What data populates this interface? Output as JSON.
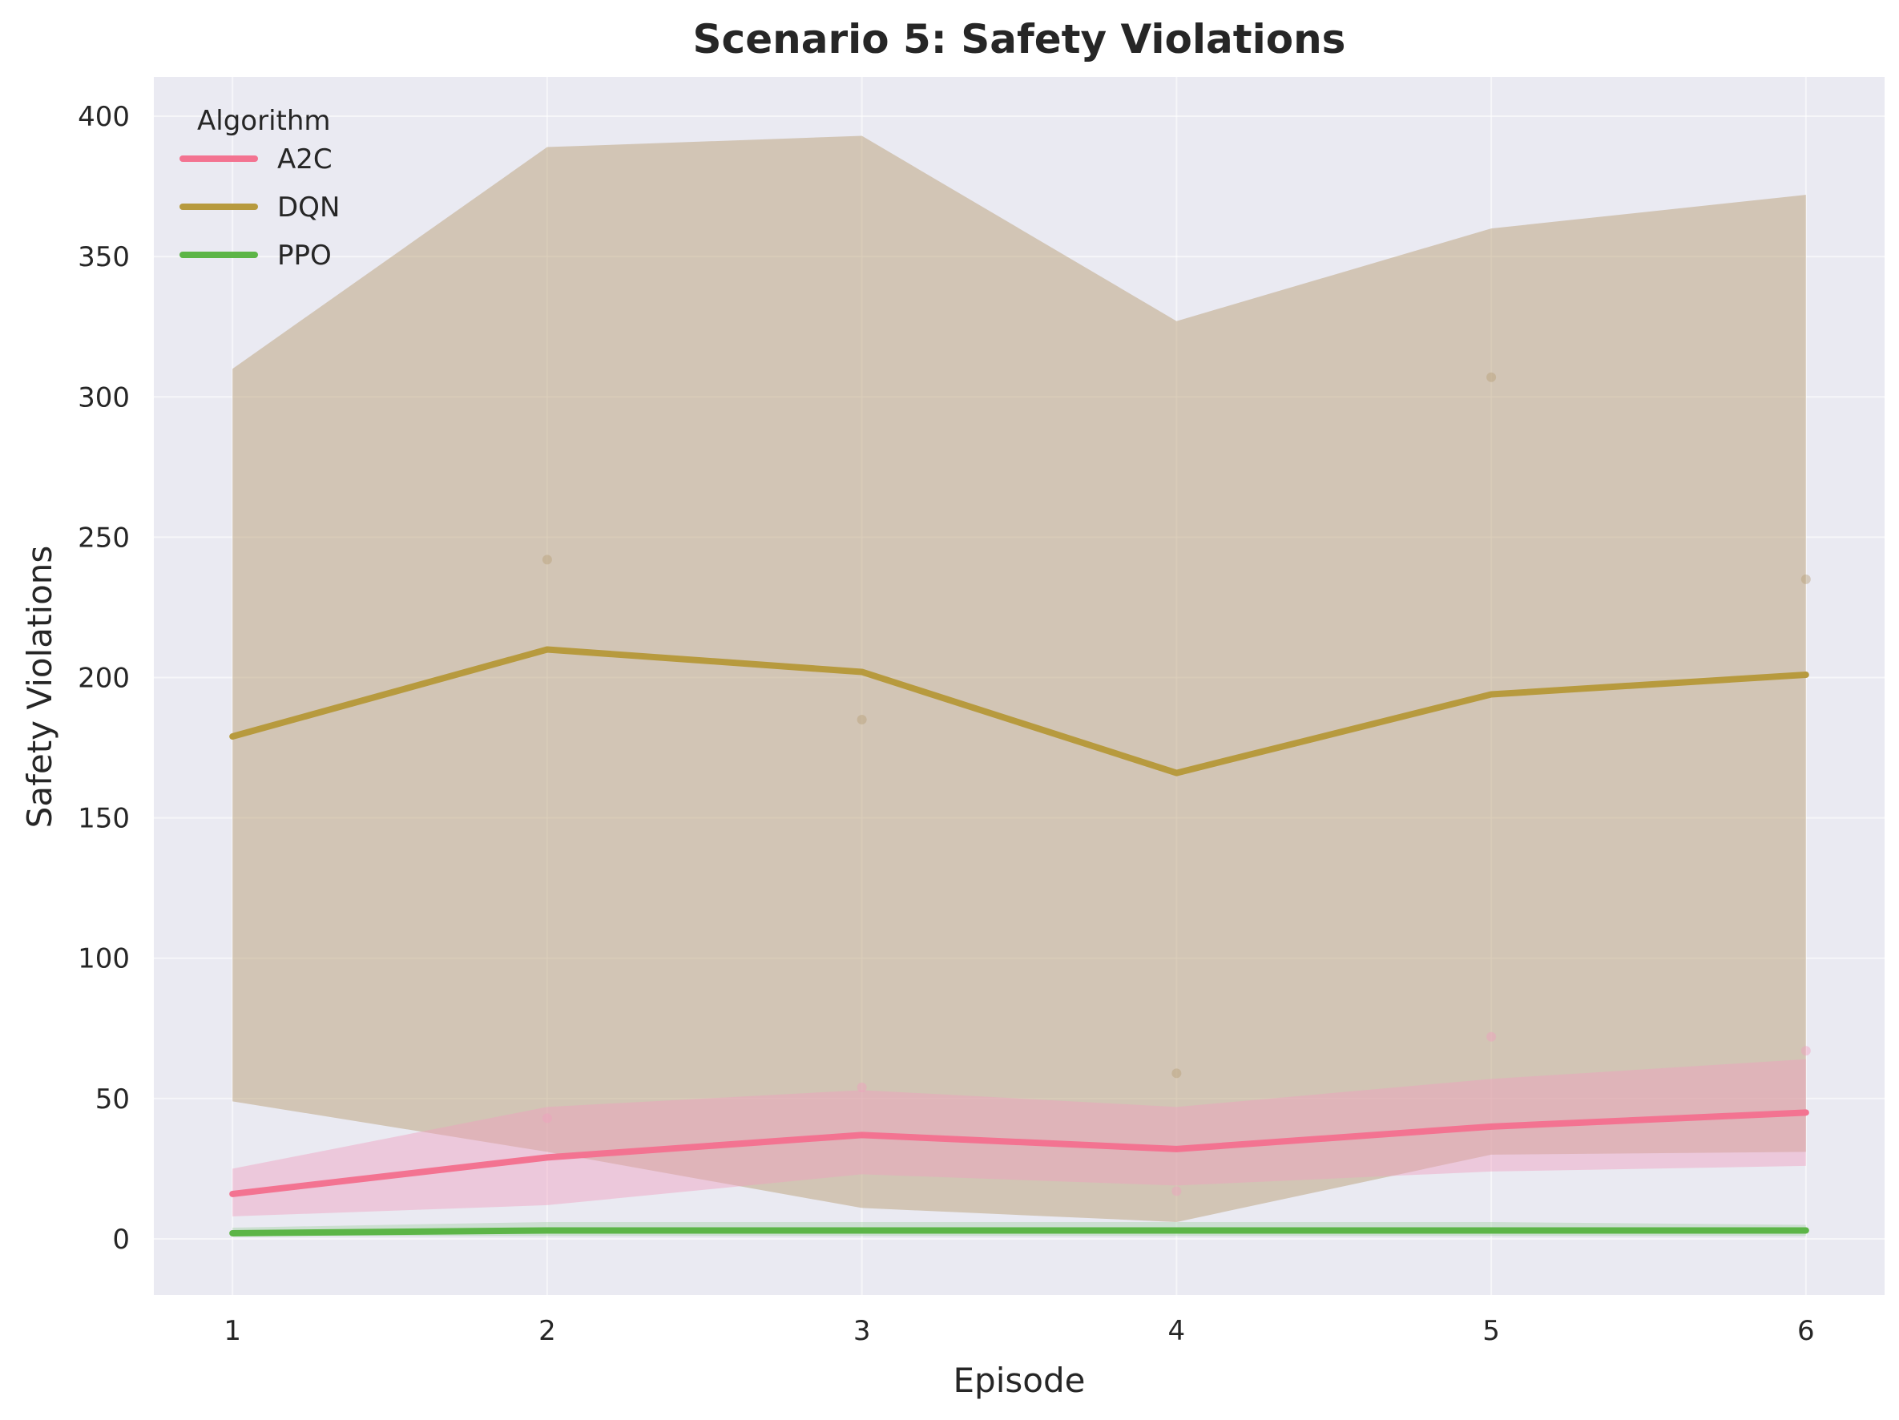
{
  "chart_data": {
    "type": "line",
    "title": "Scenario 5: Safety Violations",
    "xlabel": "Episode",
    "ylabel": "Safety Violations",
    "x": [
      1,
      2,
      3,
      4,
      5,
      6
    ],
    "xlim": [
      0.75,
      6.25
    ],
    "ylim": [
      -20,
      414
    ],
    "yticks": [
      0,
      50,
      100,
      150,
      200,
      250,
      300,
      350,
      400
    ],
    "grid": true,
    "legend": {
      "title": "Algorithm",
      "position": "top-left"
    },
    "series": [
      {
        "name": "A2C",
        "color": "#f37391",
        "band_color": "#f0a0be",
        "values": [
          16,
          29,
          37,
          32,
          40,
          45
        ],
        "band_low": [
          8,
          12,
          23,
          19,
          24,
          26
        ],
        "band_high": [
          25,
          47,
          53,
          47,
          57,
          64
        ],
        "points": [
          {
            "x": 2,
            "y": 43
          },
          {
            "x": 3,
            "y": 54
          },
          {
            "x": 4,
            "y": 17
          },
          {
            "x": 5,
            "y": 72
          },
          {
            "x": 6,
            "y": 67
          }
        ]
      },
      {
        "name": "DQN",
        "color": "#b79a3e",
        "band_color": "#b9a077",
        "values": [
          179,
          210,
          202,
          166,
          194,
          201
        ],
        "band_low": [
          49,
          31,
          11,
          6,
          30,
          31
        ],
        "band_high": [
          310,
          389,
          393,
          327,
          360,
          372
        ],
        "points": [
          {
            "x": 2,
            "y": 242
          },
          {
            "x": 3,
            "y": 185
          },
          {
            "x": 4,
            "y": 59
          },
          {
            "x": 5,
            "y": 307
          },
          {
            "x": 6,
            "y": 235
          }
        ]
      },
      {
        "name": "PPO",
        "color": "#5cb547",
        "band_color": "#a8d3a8",
        "values": [
          2,
          3,
          3,
          3,
          3,
          3
        ],
        "band_low": [
          1,
          1,
          1,
          1,
          1,
          1
        ],
        "band_high": [
          4,
          6,
          6,
          6,
          6,
          5
        ],
        "points": []
      }
    ]
  }
}
